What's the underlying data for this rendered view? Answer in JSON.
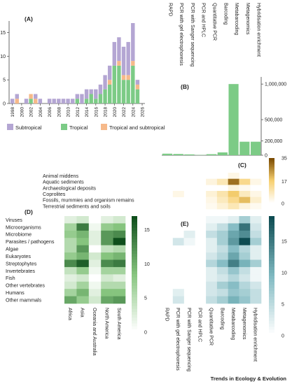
{
  "footer": "Trends in Ecology & Evolution",
  "colors": {
    "subtropical": "#b4a6d3",
    "tropical": "#7ccb86",
    "tropical_and_subtropical": "#f6b98a",
    "methods_bar": "#7ccb86",
    "heat_c": [
      "#ffffff",
      "#f7d070",
      "#7a4a00"
    ],
    "heat_d": [
      "#ffffff",
      "#86c47e",
      "#0f4f1c"
    ],
    "heat_e": [
      "#ffffff",
      "#7fb9c1",
      "#0e4c52"
    ]
  },
  "chart_data": [
    {
      "panel": "(A)",
      "type": "bar",
      "stacked": true,
      "x": [
        1998,
        1999,
        2000,
        2001,
        2002,
        2003,
        2004,
        2005,
        2006,
        2007,
        2008,
        2009,
        2010,
        2011,
        2012,
        2013,
        2014,
        2015,
        2016,
        2017,
        2018,
        2019,
        2020,
        2021,
        2022,
        2023,
        2024,
        2025
      ],
      "xticks": [
        "1998",
        "2000",
        "2002",
        "2004",
        "2006",
        "2008",
        "2010",
        "2012",
        "2014",
        "2016",
        "2018",
        "2020",
        "2022",
        "2024",
        "2026"
      ],
      "yticks": [
        "0",
        "5",
        "10",
        "15"
      ],
      "ylim": [
        0,
        17
      ],
      "series": [
        {
          "name": "Subtropical",
          "values": [
            1,
            1,
            0,
            1,
            0,
            1,
            1,
            0,
            1,
            1,
            1,
            1,
            1,
            1,
            1,
            2,
            2,
            1,
            2,
            2,
            3,
            3,
            5,
            5,
            6,
            7,
            8,
            1
          ]
        },
        {
          "name": "Tropical",
          "values": [
            0,
            0,
            0,
            0,
            1,
            0,
            0,
            0,
            0,
            0,
            0,
            0,
            0,
            0,
            1,
            0,
            1,
            2,
            1,
            2,
            3,
            4,
            8,
            8,
            5,
            5,
            8,
            3
          ]
        },
        {
          "name": "Tropical and subtropical",
          "values": [
            0,
            1,
            0,
            0,
            1,
            1,
            0,
            0,
            0,
            0,
            0,
            0,
            0,
            0,
            0,
            0,
            0,
            0,
            0,
            0,
            0,
            1,
            0,
            1,
            1,
            1,
            1,
            1
          ]
        }
      ],
      "legend": [
        "Subtropical",
        "Tropical",
        "Tropical and subtropical"
      ],
      "legend_position": "bottom"
    },
    {
      "panel": "(B)",
      "type": "bar",
      "categories": [
        "RAPD",
        "PCR with gel electrophoresis",
        "PCR with Sanger sequencing",
        "PCR and HPLC",
        "Quantitative PCR",
        "Barcoding",
        "Metabarcoding",
        "Metagenomics",
        "Hybridisation enrichment"
      ],
      "values": [
        22000,
        18000,
        12000,
        4000,
        15000,
        40000,
        1000000,
        190000,
        190000
      ],
      "yticks": [
        "0",
        "200,000",
        "500,000",
        "1,000,000"
      ],
      "y_axis_position": "right"
    },
    {
      "panel": "(C)",
      "type": "heatmap",
      "rows": [
        "Animal middens",
        "Aquatic sediments",
        "Archaeological deposits",
        "Coprolites",
        "Fossils, mummies and organism remains",
        "Terrestrial sediments and soils"
      ],
      "cols": [
        "RAPD",
        "PCR with gel electrophoresis",
        "PCR with Sanger sequencing",
        "PCR and HPLC",
        "Quantitative PCR",
        "Barcoding",
        "Metabarcoding",
        "Metagenomics",
        "Hybridisation enrichment"
      ],
      "values": [
        [
          0,
          0,
          0,
          0,
          0,
          0,
          3,
          0,
          0
        ],
        [
          0,
          0,
          0,
          0,
          4,
          9,
          30,
          14,
          3
        ],
        [
          0,
          0,
          0,
          0,
          0,
          0,
          4,
          2,
          0
        ],
        [
          0,
          3,
          0,
          0,
          5,
          10,
          18,
          8,
          3
        ],
        [
          0,
          0,
          0,
          0,
          3,
          8,
          14,
          20,
          6
        ],
        [
          0,
          0,
          0,
          0,
          2,
          5,
          9,
          4,
          2
        ]
      ],
      "colorbar_ticks": [
        "0",
        "17",
        "35"
      ]
    },
    {
      "panel": "(D)",
      "type": "heatmap",
      "rows": [
        "Viruses",
        "Microorganisms",
        "Microbiome",
        "Parasites / pathogens",
        "Algae",
        "Eukaryotes",
        "Streptophytes",
        "Invertebrates",
        "Fish",
        "Other vertebrates",
        "Humans",
        "Other mammals"
      ],
      "cols": [
        "Africa",
        "Asia",
        "Oceania and Australia",
        "North America",
        "South America"
      ],
      "values": [
        [
          2,
          3,
          0,
          2,
          3
        ],
        [
          6,
          13,
          1,
          7,
          8
        ],
        [
          7,
          9,
          2,
          11,
          12
        ],
        [
          5,
          8,
          2,
          11,
          16
        ],
        [
          5,
          11,
          0,
          4,
          5
        ],
        [
          7,
          9,
          3,
          8,
          9
        ],
        [
          12,
          15,
          2,
          12,
          13
        ],
        [
          4,
          7,
          1,
          6,
          6
        ],
        [
          2,
          3,
          0,
          3,
          2
        ],
        [
          3,
          6,
          1,
          5,
          5
        ],
        [
          6,
          9,
          2,
          8,
          8
        ],
        [
          10,
          7,
          3,
          10,
          11
        ]
      ],
      "colorbar_ticks": [
        "0",
        "5",
        "10",
        "15"
      ]
    },
    {
      "panel": "(E)",
      "type": "heatmap",
      "rows": [
        "Viruses",
        "Microorganisms",
        "Microbiome",
        "Parasites / pathogens",
        "Algae",
        "Eukaryotes",
        "Streptophytes",
        "Invertebrates",
        "Fish",
        "Other vertebrates",
        "Humans",
        "Other mammals"
      ],
      "cols": [
        "RAPD",
        "PCR with gel electrophoresis",
        "PCR with Sanger sequencing",
        "PCR and HPLC",
        "Quantitative PCR",
        "Barcoding",
        "Metabarcoding",
        "Metagenomics",
        "Hybridisation enrichment"
      ],
      "values": [
        [
          0,
          0,
          0,
          0,
          1,
          1,
          2,
          6,
          2
        ],
        [
          0,
          0,
          0,
          0,
          2,
          4,
          8,
          14,
          3
        ],
        [
          0,
          0,
          2,
          0,
          4,
          6,
          10,
          12,
          4
        ],
        [
          0,
          3,
          1,
          0,
          2,
          6,
          11,
          17,
          6
        ],
        [
          0,
          0,
          0,
          0,
          2,
          4,
          8,
          5,
          2
        ],
        [
          0,
          0,
          0,
          0,
          3,
          5,
          10,
          6,
          2
        ],
        [
          0,
          0,
          0,
          0,
          5,
          8,
          13,
          9,
          6
        ],
        [
          0,
          0,
          0,
          0,
          2,
          4,
          7,
          4,
          1
        ],
        [
          0,
          0,
          0,
          0,
          2,
          3,
          5,
          3,
          1
        ],
        [
          0,
          0,
          0,
          0,
          3,
          6,
          8,
          5,
          3
        ],
        [
          0,
          2,
          0,
          0,
          3,
          4,
          7,
          6,
          4
        ],
        [
          0,
          3,
          0,
          0,
          4,
          6,
          9,
          7,
          4
        ]
      ],
      "colorbar_ticks": [
        "0",
        "5",
        "10",
        "15"
      ]
    }
  ]
}
